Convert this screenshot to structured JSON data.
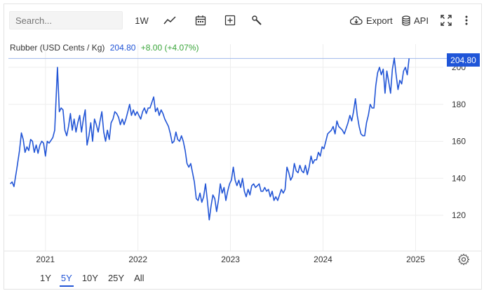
{
  "toolbar": {
    "search_placeholder": "Search...",
    "interval_label": "1W",
    "export_label": "Export",
    "api_label": "API",
    "icons": [
      "line-chart-icon",
      "calendar-icon",
      "add-indicator-icon",
      "wrench-icon",
      "cloud-download-icon",
      "database-icon",
      "fullscreen-icon",
      "more-vertical-icon"
    ]
  },
  "legend": {
    "name": "Rubber (USD Cents / Kg)",
    "value": "204.80",
    "change": "+8.00 (+4.07%)"
  },
  "price_tag": "204.80",
  "ranges": [
    {
      "label": "1Y",
      "active": false
    },
    {
      "label": "5Y",
      "active": true
    },
    {
      "label": "10Y",
      "active": false
    },
    {
      "label": "25Y",
      "active": false
    },
    {
      "label": "All",
      "active": false
    }
  ],
  "colors": {
    "line": "#2255d6",
    "positive": "#3aa53a",
    "price_tag_bg": "#1f55d8"
  },
  "chart_data": {
    "type": "line",
    "title": "Rubber (USD Cents / Kg)",
    "xlabel": "",
    "ylabel": "",
    "y_tick_labels": [
      "120",
      "140",
      "160",
      "180",
      "200"
    ],
    "x_tick_labels": [
      "2021",
      "2022",
      "2023",
      "2024",
      "2025"
    ],
    "ylim": [
      100,
      210
    ],
    "xlim": [
      2020.6,
      2025.3
    ],
    "grid": true,
    "series": [
      {
        "values": [
          [
            2020.62,
            137
          ],
          [
            2020.64,
            138
          ],
          [
            2020.66,
            135.5
          ],
          [
            2020.69,
            145
          ],
          [
            2020.72,
            155
          ],
          [
            2020.74,
            164.5
          ],
          [
            2020.76,
            161
          ],
          [
            2020.78,
            154
          ],
          [
            2020.8,
            157
          ],
          [
            2020.82,
            155
          ],
          [
            2020.84,
            161
          ],
          [
            2020.86,
            160
          ],
          [
            2020.88,
            154
          ],
          [
            2020.9,
            158
          ],
          [
            2020.92,
            153.5
          ],
          [
            2020.94,
            158
          ],
          [
            2020.96,
            160
          ],
          [
            2020.98,
            159
          ],
          [
            2021.0,
            152
          ],
          [
            2021.02,
            160
          ],
          [
            2021.04,
            159
          ],
          [
            2021.06,
            160.5
          ],
          [
            2021.08,
            162
          ],
          [
            2021.1,
            166
          ],
          [
            2021.13,
            200
          ],
          [
            2021.15,
            176
          ],
          [
            2021.17,
            178
          ],
          [
            2021.19,
            177
          ],
          [
            2021.21,
            166
          ],
          [
            2021.23,
            163
          ],
          [
            2021.25,
            168
          ],
          [
            2021.27,
            175
          ],
          [
            2021.29,
            166
          ],
          [
            2021.31,
            172
          ],
          [
            2021.33,
            165
          ],
          [
            2021.35,
            170
          ],
          [
            2021.37,
            174
          ],
          [
            2021.39,
            165
          ],
          [
            2021.41,
            172
          ],
          [
            2021.43,
            177
          ],
          [
            2021.45,
            158
          ],
          [
            2021.47,
            163
          ],
          [
            2021.49,
            170
          ],
          [
            2021.51,
            160
          ],
          [
            2021.53,
            172
          ],
          [
            2021.55,
            169
          ],
          [
            2021.57,
            165
          ],
          [
            2021.59,
            171
          ],
          [
            2021.61,
            176
          ],
          [
            2021.63,
            165
          ],
          [
            2021.65,
            160
          ],
          [
            2021.67,
            166
          ],
          [
            2021.69,
            161
          ],
          [
            2021.71,
            170
          ],
          [
            2021.73,
            172
          ],
          [
            2021.75,
            176
          ],
          [
            2021.77,
            175
          ],
          [
            2021.79,
            173
          ],
          [
            2021.81,
            169
          ],
          [
            2021.83,
            172
          ],
          [
            2021.85,
            169
          ],
          [
            2021.87,
            172
          ],
          [
            2021.89,
            176
          ],
          [
            2021.91,
            180
          ],
          [
            2021.93,
            174
          ],
          [
            2021.95,
            177
          ],
          [
            2021.97,
            174
          ],
          [
            2021.99,
            176
          ],
          [
            2022.01,
            174
          ],
          [
            2022.03,
            172
          ],
          [
            2022.05,
            176
          ],
          [
            2022.07,
            178
          ],
          [
            2022.09,
            175
          ],
          [
            2022.11,
            178
          ],
          [
            2022.13,
            178
          ],
          [
            2022.15,
            181
          ],
          [
            2022.17,
            184
          ],
          [
            2022.19,
            176
          ],
          [
            2022.21,
            178
          ],
          [
            2022.23,
            174
          ],
          [
            2022.25,
            177
          ],
          [
            2022.27,
            175
          ],
          [
            2022.29,
            172
          ],
          [
            2022.31,
            170
          ],
          [
            2022.33,
            168
          ],
          [
            2022.35,
            164
          ],
          [
            2022.37,
            159
          ],
          [
            2022.39,
            160
          ],
          [
            2022.41,
            165
          ],
          [
            2022.43,
            161
          ],
          [
            2022.45,
            160
          ],
          [
            2022.47,
            163
          ],
          [
            2022.49,
            160
          ],
          [
            2022.51,
            155
          ],
          [
            2022.53,
            148
          ],
          [
            2022.55,
            146
          ],
          [
            2022.57,
            148
          ],
          [
            2022.59,
            143
          ],
          [
            2022.61,
            138
          ],
          [
            2022.63,
            129
          ],
          [
            2022.65,
            128
          ],
          [
            2022.67,
            132
          ],
          [
            2022.69,
            127
          ],
          [
            2022.71,
            130
          ],
          [
            2022.73,
            137
          ],
          [
            2022.75,
            128
          ],
          [
            2022.77,
            117.5
          ],
          [
            2022.79,
            125
          ],
          [
            2022.81,
            131
          ],
          [
            2022.83,
            129
          ],
          [
            2022.85,
            122
          ],
          [
            2022.87,
            128
          ],
          [
            2022.89,
            137
          ],
          [
            2022.91,
            132
          ],
          [
            2022.93,
            135
          ],
          [
            2022.95,
            128
          ],
          [
            2022.97,
            133
          ],
          [
            2022.99,
            137
          ],
          [
            2023.01,
            139
          ],
          [
            2023.03,
            146
          ],
          [
            2023.05,
            139
          ],
          [
            2023.07,
            136
          ],
          [
            2023.09,
            139
          ],
          [
            2023.11,
            135
          ],
          [
            2023.13,
            140
          ],
          [
            2023.15,
            133
          ],
          [
            2023.17,
            130
          ],
          [
            2023.19,
            134
          ],
          [
            2023.21,
            131
          ],
          [
            2023.23,
            136
          ],
          [
            2023.25,
            137
          ],
          [
            2023.27,
            135
          ],
          [
            2023.29,
            136
          ],
          [
            2023.31,
            137
          ],
          [
            2023.33,
            133
          ],
          [
            2023.35,
            133
          ],
          [
            2023.37,
            135
          ],
          [
            2023.39,
            133
          ],
          [
            2023.41,
            134
          ],
          [
            2023.43,
            130
          ],
          [
            2023.45,
            133
          ],
          [
            2023.47,
            128
          ],
          [
            2023.49,
            130
          ],
          [
            2023.51,
            128
          ],
          [
            2023.53,
            131
          ],
          [
            2023.55,
            134
          ],
          [
            2023.57,
            132
          ],
          [
            2023.59,
            134
          ],
          [
            2023.61,
            146
          ],
          [
            2023.63,
            143
          ],
          [
            2023.65,
            139
          ],
          [
            2023.67,
            141
          ],
          [
            2023.69,
            148
          ],
          [
            2023.71,
            144
          ],
          [
            2023.73,
            143
          ],
          [
            2023.75,
            147
          ],
          [
            2023.77,
            144
          ],
          [
            2023.79,
            143
          ],
          [
            2023.81,
            147
          ],
          [
            2023.83,
            142
          ],
          [
            2023.85,
            146
          ],
          [
            2023.87,
            152
          ],
          [
            2023.89,
            148
          ],
          [
            2023.91,
            150
          ],
          [
            2023.93,
            150
          ],
          [
            2023.95,
            154
          ],
          [
            2023.97,
            152
          ],
          [
            2023.99,
            157
          ],
          [
            2024.01,
            156
          ],
          [
            2024.03,
            160
          ],
          [
            2024.05,
            164
          ],
          [
            2024.07,
            165
          ],
          [
            2024.09,
            166
          ],
          [
            2024.11,
            168
          ],
          [
            2024.13,
            164
          ],
          [
            2024.15,
            171
          ],
          [
            2024.17,
            168
          ],
          [
            2024.19,
            167
          ],
          [
            2024.21,
            166
          ],
          [
            2024.23,
            164
          ],
          [
            2024.25,
            167
          ],
          [
            2024.27,
            170
          ],
          [
            2024.29,
            174
          ],
          [
            2024.31,
            171
          ],
          [
            2024.33,
            176
          ],
          [
            2024.35,
            183
          ],
          [
            2024.37,
            174
          ],
          [
            2024.39,
            168
          ],
          [
            2024.41,
            164
          ],
          [
            2024.43,
            163
          ],
          [
            2024.45,
            163
          ],
          [
            2024.47,
            170
          ],
          [
            2024.49,
            174
          ],
          [
            2024.51,
            180
          ],
          [
            2024.53,
            178
          ],
          [
            2024.55,
            178
          ],
          [
            2024.57,
            190
          ],
          [
            2024.59,
            197
          ],
          [
            2024.61,
            200
          ],
          [
            2024.63,
            196
          ],
          [
            2024.65,
            199
          ],
          [
            2024.67,
            186
          ],
          [
            2024.69,
            198
          ],
          [
            2024.71,
            192
          ],
          [
            2024.73,
            186
          ],
          [
            2024.75,
            199
          ],
          [
            2024.77,
            205
          ],
          [
            2024.79,
            196
          ],
          [
            2024.81,
            188
          ],
          [
            2024.83,
            193
          ],
          [
            2024.85,
            191
          ],
          [
            2024.87,
            198
          ],
          [
            2024.89,
            200
          ],
          [
            2024.91,
            196
          ],
          [
            2024.93,
            204.8
          ]
        ]
      }
    ]
  }
}
